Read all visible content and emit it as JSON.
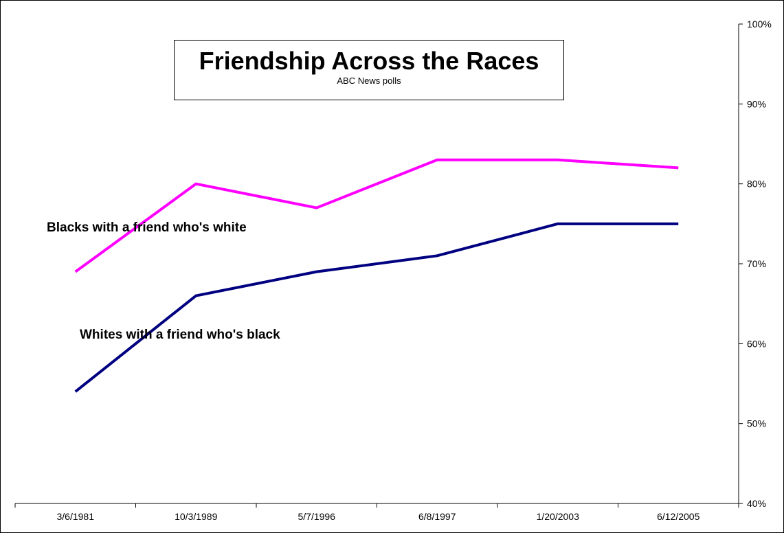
{
  "chart_data": {
    "type": "line",
    "title": "Friendship Across the Races",
    "subtitle": "ABC News polls",
    "categories": [
      "3/6/1981",
      "10/3/1989",
      "5/7/1996",
      "6/8/1997",
      "1/20/2003",
      "6/12/2005"
    ],
    "series": [
      {
        "name": "Blacks with a friend who's white",
        "color": "#FF00FF",
        "values": [
          69,
          80,
          77,
          83,
          83,
          82
        ]
      },
      {
        "name": "Whites with a friend who's black",
        "color": "#000080",
        "values": [
          54,
          66,
          69,
          71,
          75,
          75
        ]
      }
    ],
    "ylim": [
      40,
      100
    ],
    "yticks": [
      "40%",
      "50%",
      "60%",
      "70%",
      "80%",
      "90%",
      "100%"
    ],
    "y_axis_side": "right",
    "grid": false,
    "legend": "none (series labeled inline)"
  }
}
